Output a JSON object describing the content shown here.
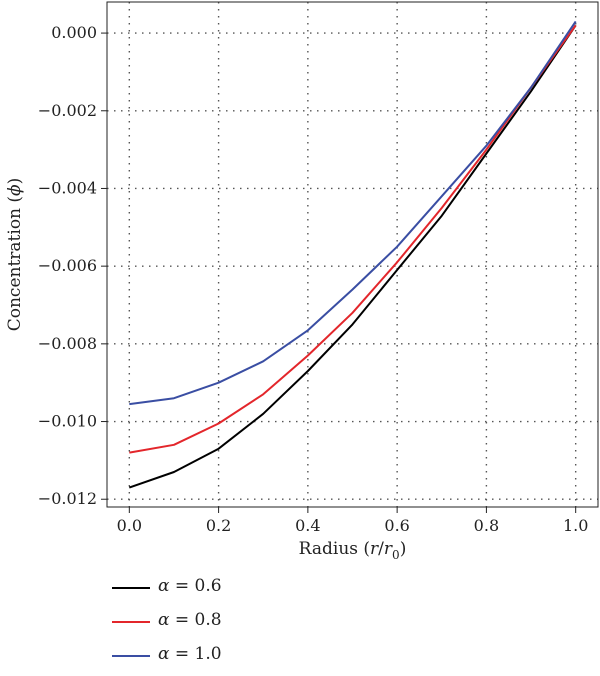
{
  "chart_data": {
    "type": "line",
    "xlabel": {
      "prefix": "Radius (",
      "var": "r",
      "sep": "/",
      "var2": "r",
      "sub": "0",
      "suffix": ")"
    },
    "ylabel": {
      "prefix": "Concentration (",
      "var": "ϕ",
      "suffix": ")"
    },
    "xlim": [
      -0.05,
      1.05
    ],
    "ylim": [
      -0.0122,
      0.0008
    ],
    "xticks": [
      0.0,
      0.2,
      0.4,
      0.6,
      0.8,
      1.0
    ],
    "xtick_labels": [
      "0.0",
      "0.2",
      "0.4",
      "0.6",
      "0.8",
      "1.0"
    ],
    "yticks": [
      0.0,
      -0.002,
      -0.004,
      -0.006,
      -0.008,
      -0.01,
      -0.012
    ],
    "ytick_labels": [
      "0.000",
      "−0.002",
      "−0.004",
      "−0.006",
      "−0.008",
      "−0.010",
      "−0.012"
    ],
    "xgrid": [
      0.0,
      0.2,
      0.4,
      0.6,
      0.8,
      1.0
    ],
    "ygrid": [
      0.0,
      -0.002,
      -0.004,
      -0.006,
      -0.008,
      -0.01,
      -0.012
    ],
    "grid": "dotted",
    "legend_position": "below",
    "x": [
      0.0,
      0.1,
      0.2,
      0.3,
      0.4,
      0.5,
      0.6,
      0.7,
      0.8,
      0.9,
      1.0
    ],
    "series": [
      {
        "symbol": "α",
        "value": "0.6",
        "color": "#000000",
        "values": [
          -0.0117,
          -0.0113,
          -0.0107,
          -0.0098,
          -0.0087,
          -0.0075,
          -0.0061,
          -0.0047,
          -0.0031,
          -0.0015,
          0.0002
        ]
      },
      {
        "symbol": "α",
        "value": "0.8",
        "color": "#e3262b",
        "values": [
          -0.0108,
          -0.0106,
          -0.01005,
          -0.0093,
          -0.0083,
          -0.0072,
          -0.0059,
          -0.0045,
          -0.003,
          -0.0014,
          0.0002
        ]
      },
      {
        "symbol": "α",
        "value": "1.0",
        "color": "#3a4ea3",
        "values": [
          -0.00955,
          -0.0094,
          -0.009,
          -0.00845,
          -0.00765,
          -0.0066,
          -0.0055,
          -0.0042,
          -0.0029,
          -0.0014,
          0.0003
        ]
      }
    ]
  }
}
